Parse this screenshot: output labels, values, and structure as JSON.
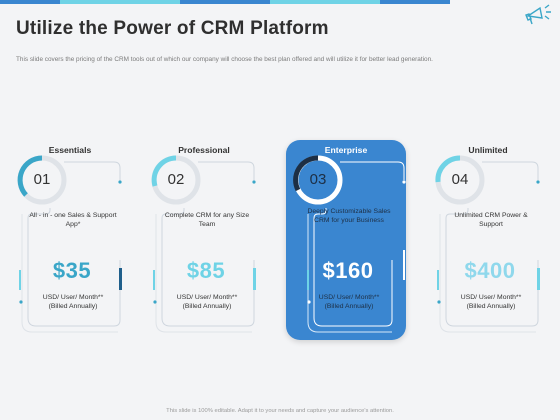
{
  "slide": {
    "title": "Utilize the Power of CRM Platform",
    "subtitle": "This slide covers the pricing of the CRM tools out of which our company will choose the best plan offered and will utilize it for better lead generation.",
    "footer": "This slide is 100% editable. Adapt it to your needs and capture your audience's attention."
  },
  "plans": [
    {
      "name": "Essentials",
      "number": "01",
      "description": "All - in - one Sales & Support App*",
      "price": "$35",
      "billing_line1": "USD/ User/ Month**",
      "billing_line2": "(Billed Annually)"
    },
    {
      "name": "Professional",
      "number": "02",
      "description": "Complete CRM for any Size Team",
      "price": "$85",
      "billing_line1": "USD/ User/ Month**",
      "billing_line2": "(Billed Annually)"
    },
    {
      "name": "Enterprise",
      "number": "03",
      "description": "Deeply Customizable Sales CRM for your Business",
      "price": "$160",
      "billing_line1": "USD/ User/ Month**",
      "billing_line2": "(Billed Annually)"
    },
    {
      "name": "Unlimited",
      "number": "04",
      "description": "Unlimited CRM Power & Support",
      "price": "$400",
      "billing_line1": "USD/ User/ Month**",
      "billing_line2": "(Billed Annually)"
    }
  ],
  "icons": {
    "header_icon": "megaphone-icon"
  },
  "colors": {
    "accent": "#3a86d0",
    "accent_light": "#6fd3e6",
    "highlight_card": "#3a86d0"
  }
}
